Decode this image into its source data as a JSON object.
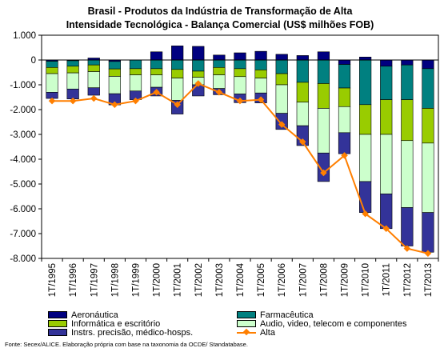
{
  "title_line1": "Brasil - Produtos da Indústria de Transformação de Alta",
  "title_line2": "Intensidade Tecnológica - Balança Comercial (US$ milhões FOB)",
  "source": "Fonte: Secex/ALICE. Elaboração própria com base na taxonomia da OCDE/ Standatabase.",
  "legend": [
    {
      "label": "Aeronáutica",
      "color": "#000080"
    },
    {
      "label": "Farmacêutica",
      "color": "#008080"
    },
    {
      "label": "Informática e escritório",
      "color": "#99cc00"
    },
    {
      "label": "Audio, video, telecom e componentes",
      "color": "#ccffcc"
    },
    {
      "label": "Instrs. precisão, médico-hosps.",
      "color": "#333399"
    },
    {
      "label": "Alta",
      "color": "#ff7f00"
    }
  ],
  "chart_data": {
    "type": "bar",
    "stacked": true,
    "title": "Brasil - Produtos da Indústria de Transformação de Alta Intensidade Tecnológica - Balança Comercial (US$ milhões FOB)",
    "categories": [
      "1T/1995",
      "1T/1996",
      "1T/1997",
      "1T/1998",
      "1T/1999",
      "1T/2000",
      "1T/2001",
      "1T/2002",
      "1T/2003",
      "1T/2004",
      "1T/2005",
      "1T/2006",
      "1T/2007",
      "1T/2008",
      "1T/2009",
      "1T/2010",
      "1T/2011",
      "1T/2012",
      "1T/2013"
    ],
    "ylim": [
      -8000,
      1000
    ],
    "yticks": [
      1000,
      0,
      -1000,
      -2000,
      -3000,
      -4000,
      -5000,
      -6000,
      -7000,
      -8000
    ],
    "ytick_labels": [
      "1.000",
      "0",
      "-1.000",
      "-2.000",
      "-3.000",
      "-4.000",
      "-5.000",
      "-6.000",
      "-7.000",
      "-8.000"
    ],
    "series": [
      {
        "name": "Aeronáutica",
        "color": "#000080",
        "values": [
          -50,
          -30,
          80,
          -60,
          0,
          330,
          570,
          550,
          200,
          290,
          350,
          230,
          180,
          330,
          -180,
          120,
          -250,
          -200,
          -350
        ]
      },
      {
        "name": "Farmacêutica",
        "color": "#008080",
        "values": [
          -250,
          -220,
          -200,
          -300,
          -350,
          -350,
          -380,
          -450,
          -300,
          -350,
          -400,
          -550,
          -900,
          -950,
          -950,
          -1800,
          -1350,
          -1400,
          -1600
        ]
      },
      {
        "name": "Informática e escritório",
        "color": "#99cc00",
        "values": [
          -250,
          -270,
          -270,
          -300,
          -250,
          -250,
          -350,
          -250,
          -300,
          -320,
          -330,
          -450,
          -800,
          -1000,
          -750,
          -1200,
          -1400,
          -1650,
          -1400
        ]
      },
      {
        "name": "Audio, video, telecom e componentes",
        "color": "#ccffcc",
        "values": [
          -750,
          -650,
          -650,
          -700,
          -650,
          -500,
          -900,
          -300,
          -550,
          -700,
          -600,
          -1150,
          -950,
          -1800,
          -1050,
          -1900,
          -2400,
          -2700,
          -2800
        ]
      },
      {
        "name": "Instrs. precisão, médico-hosps.",
        "color": "#333399",
        "values": [
          -250,
          -400,
          -300,
          -450,
          -350,
          -350,
          -550,
          -450,
          -250,
          -350,
          -400,
          -650,
          -800,
          -1150,
          -850,
          -1250,
          -1400,
          -1550,
          -1600
        ]
      }
    ],
    "line": {
      "name": "Alta",
      "color": "#ff7f00",
      "values": [
        -1650,
        -1650,
        -1550,
        -1800,
        -1650,
        -1300,
        -1800,
        -950,
        -1300,
        -1650,
        -1600,
        -2600,
        -3300,
        -4550,
        -3850,
        -6200,
        -6800,
        -7600,
        -7800
      ]
    }
  }
}
